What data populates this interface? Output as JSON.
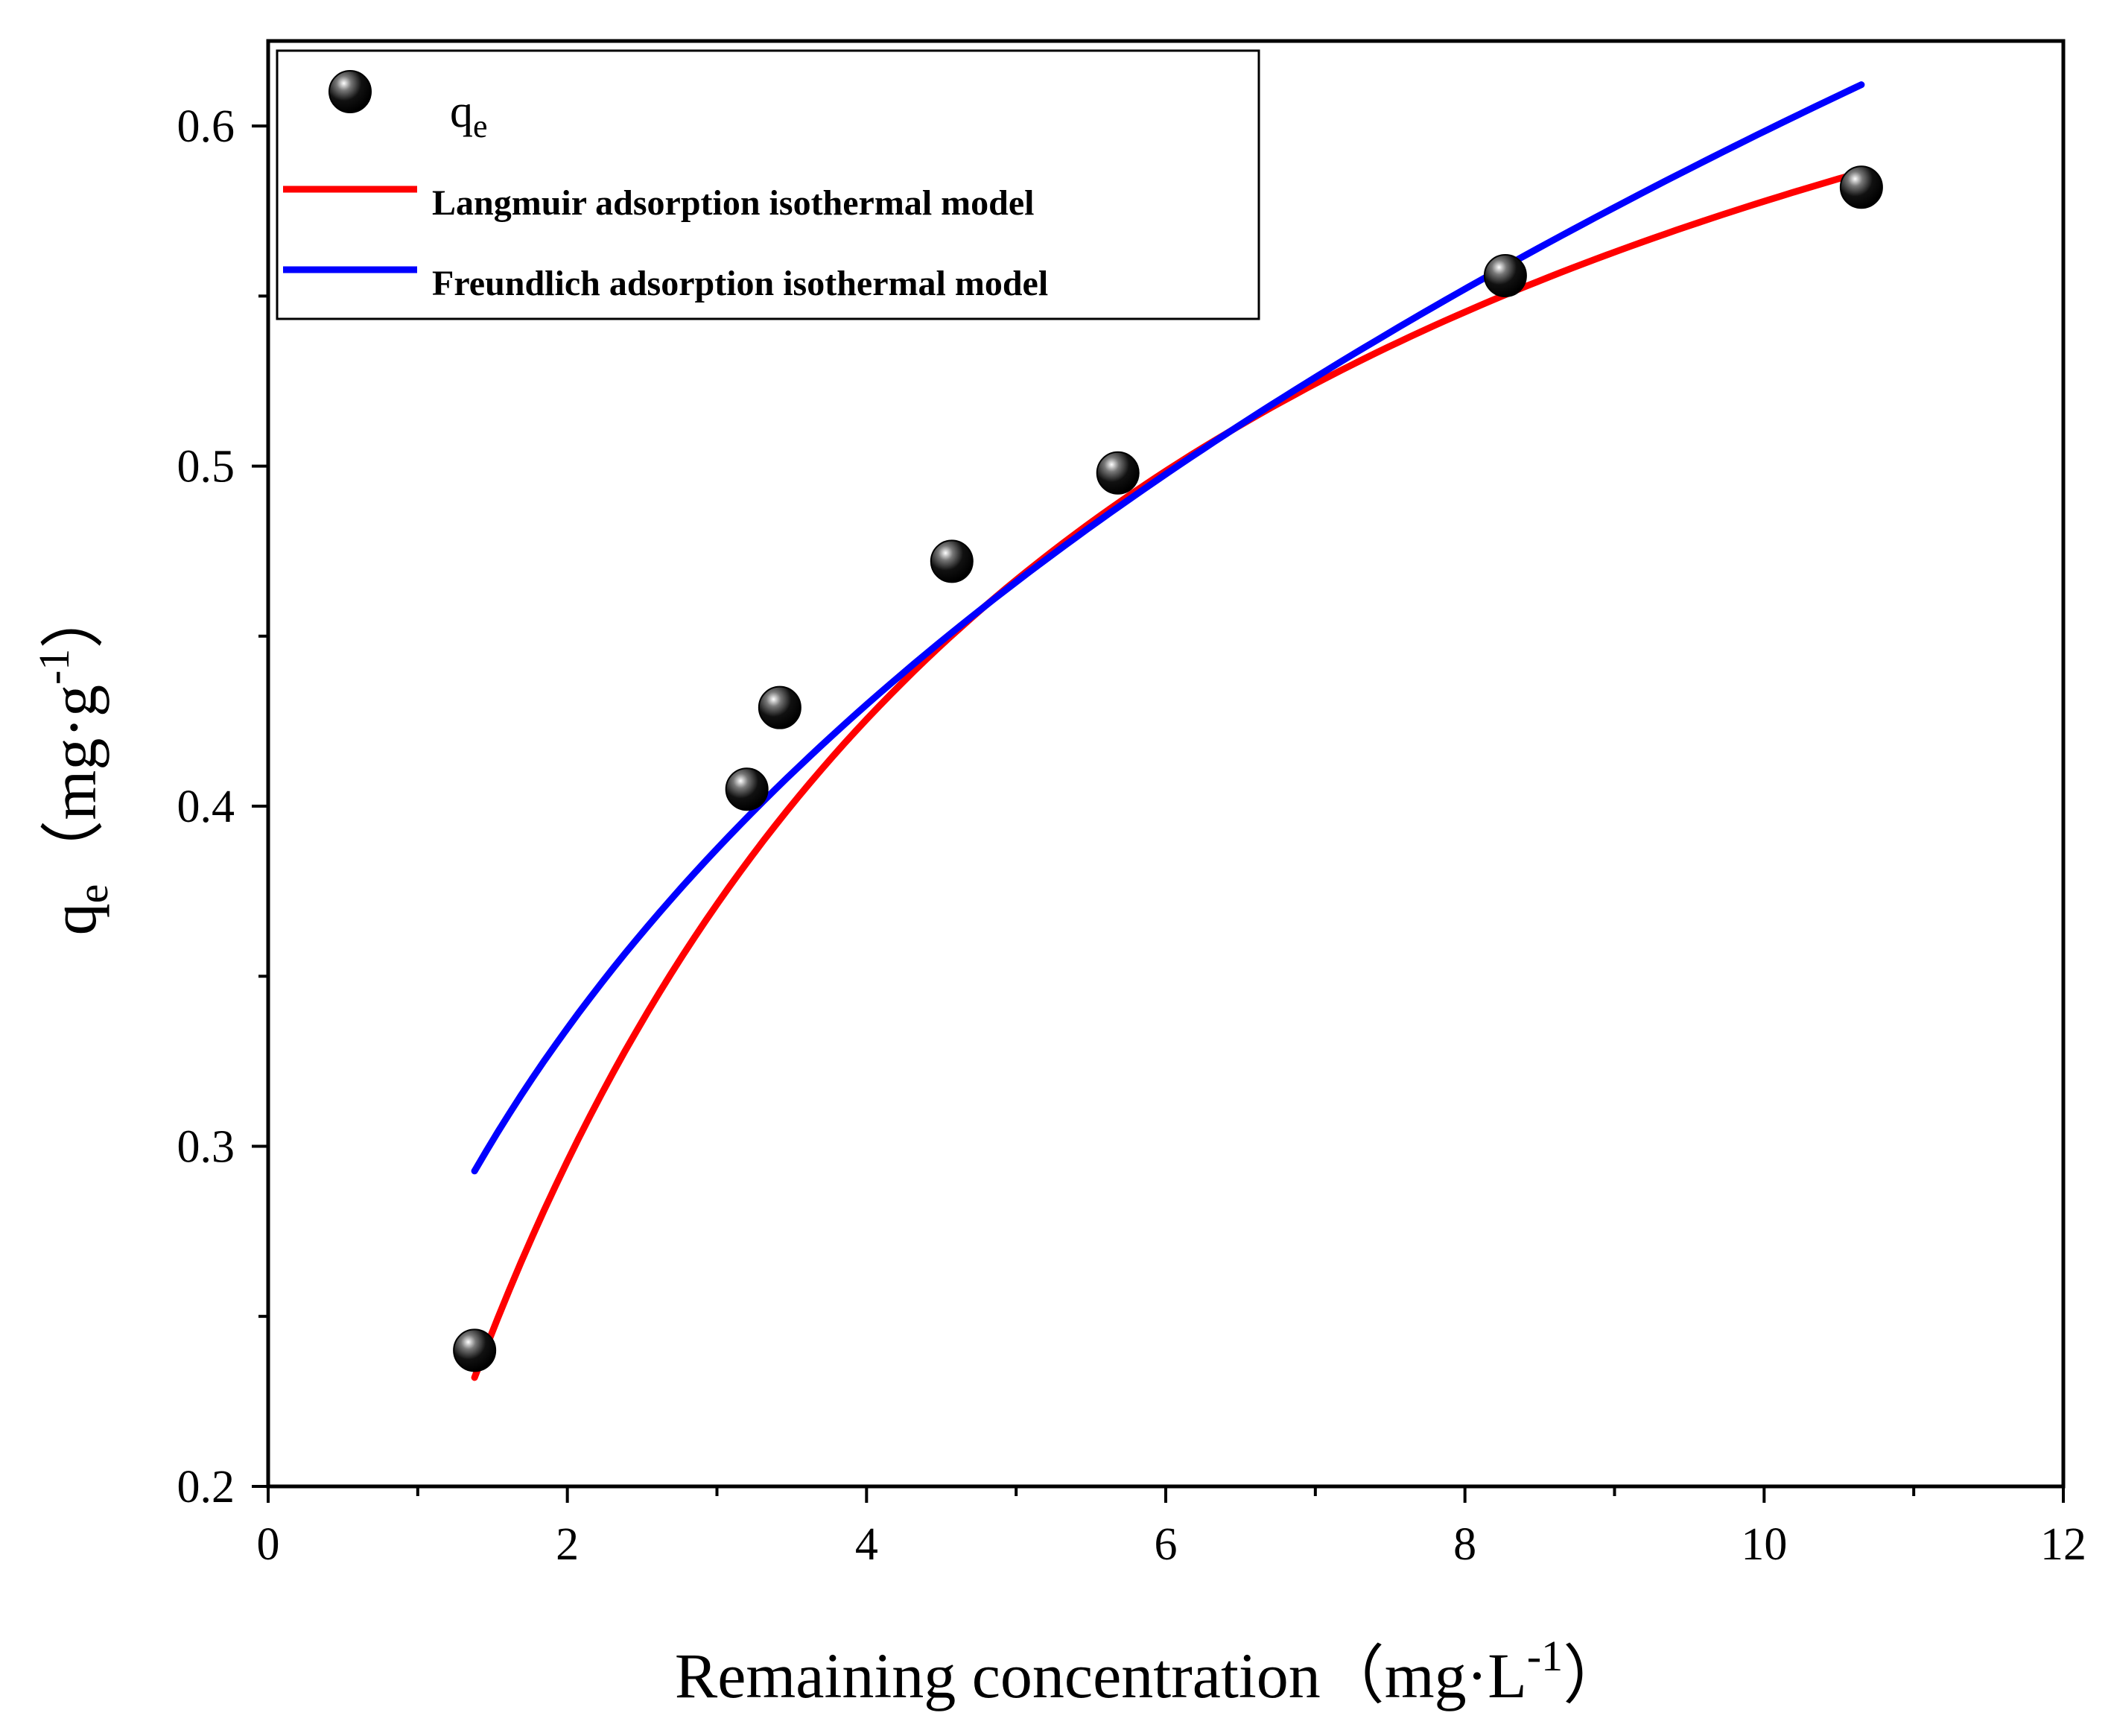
{
  "chart_data": {
    "type": "scatter",
    "title": "",
    "xlabel": "Remaining concentration（mg·L",
    "xlabel_sup": "-1",
    "xlabel_tail": "）",
    "ylabel_main": "q",
    "ylabel_sub": "e",
    "ylabel_unit": "（mg·g",
    "ylabel_sup": "-1",
    "ylabel_tail": "）",
    "xlim": [
      0,
      12
    ],
    "ylim": [
      0.2,
      0.625
    ],
    "xticks": [
      0,
      2,
      4,
      6,
      8,
      10,
      12
    ],
    "xtick_labels": [
      "0",
      "2",
      "4",
      "6",
      "8",
      "10",
      "12"
    ],
    "yticks": [
      0.2,
      0.3,
      0.4,
      0.5,
      0.6
    ],
    "ytick_labels": [
      "0.2",
      "0.3",
      "0.4",
      "0.5",
      "0.6"
    ],
    "legend_position": "top-left",
    "series": [
      {
        "name": "q",
        "name_sub": "e",
        "kind": "scatter",
        "color": "#000000",
        "x": [
          1.38,
          3.2,
          3.42,
          4.57,
          5.68,
          8.27,
          10.65
        ],
        "y": [
          0.24,
          0.405,
          0.429,
          0.472,
          0.498,
          0.556,
          0.582
        ]
      },
      {
        "name": "Langmuir adsorption isothermal model",
        "kind": "line",
        "color": "#ff0000",
        "model": "langmuir",
        "params": {
          "qmax": 0.759,
          "KL": 0.319
        },
        "x_range": [
          1.38,
          10.65
        ]
      },
      {
        "name": "Freundlich adsorption isothermal model",
        "kind": "line",
        "color": "#0000ff",
        "model": "freundlich",
        "params": {
          "KF": 0.2606,
          "n": 2.77
        },
        "x_range": [
          1.38,
          10.65
        ]
      }
    ]
  }
}
